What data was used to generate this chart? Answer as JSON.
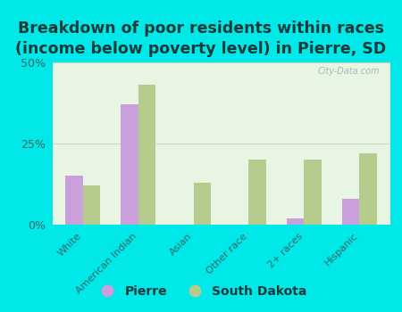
{
  "title": "Breakdown of poor residents within races\n(income below poverty level) in Pierre, SD",
  "categories": [
    "White",
    "American Indian",
    "Asian",
    "Other race",
    "2+ races",
    "Hispanic"
  ],
  "pierre_values": [
    15,
    37,
    0,
    0,
    2,
    8
  ],
  "sd_values": [
    12,
    43,
    13,
    20,
    20,
    22
  ],
  "pierre_color": "#c9a0dc",
  "sd_color": "#b5cc8e",
  "background_color": "#00e8e8",
  "plot_bg_color": "#e8f5e2",
  "ylim": [
    0,
    50
  ],
  "yticks": [
    0,
    25,
    50
  ],
  "ytick_labels": [
    "0%",
    "25%",
    "50%"
  ],
  "grid_color": "#c8dac0",
  "bar_width": 0.32,
  "legend_pierre": "Pierre",
  "legend_sd": "South Dakota",
  "title_fontsize": 12.5,
  "title_color": "#1a3a3a",
  "tick_label_color": "#336666",
  "watermark": "City-Data.com"
}
